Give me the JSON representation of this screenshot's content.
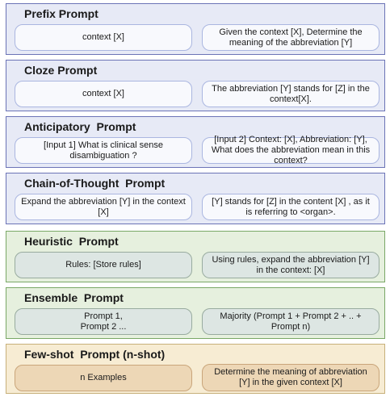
{
  "panels": [
    {
      "title": "Prefix Prompt",
      "left": "context [X]",
      "right": "Given the context [X], Determine the meaning of the abbreviation [Y]"
    },
    {
      "title": "Cloze Prompt",
      "left": "context [X]",
      "right": "The abbreviation [Y] stands for [Z] in the context[X]."
    },
    {
      "title": "Anticipatory  Prompt",
      "left": "[Input 1] What is clinical sense disambiguation ?",
      "right": "[Input 2] Context: [X], Abbreviation: [Y], What does the abbreviation mean in this context?"
    },
    {
      "title": "Chain-of-Thought  Prompt",
      "left": "Expand the abbreviation [Y] in the context [X]",
      "right": "[Y] stands for [Z] in the content [X] , as it is referring to <organ>."
    },
    {
      "title": "Heuristic  Prompt",
      "left": "Rules: [Store rules]",
      "right": "Using rules, expand the abbreviation [Y] in the context: [X]"
    },
    {
      "title": "Ensemble  Prompt",
      "left": "Prompt 1,\nPrompt 2 ...",
      "right": "Majority (Prompt 1 + Prompt 2 + .. + Prompt n)"
    },
    {
      "title": "Few-shot  Prompt (n-shot)",
      "left": "n Examples",
      "right": "Determine the meaning of abbreviation [Y] in the given context [X]"
    }
  ],
  "colors": {
    "blue_panel": "#e7eaf6",
    "green_panel": "#e6f0de",
    "orange_panel": "#f7ecd3"
  }
}
